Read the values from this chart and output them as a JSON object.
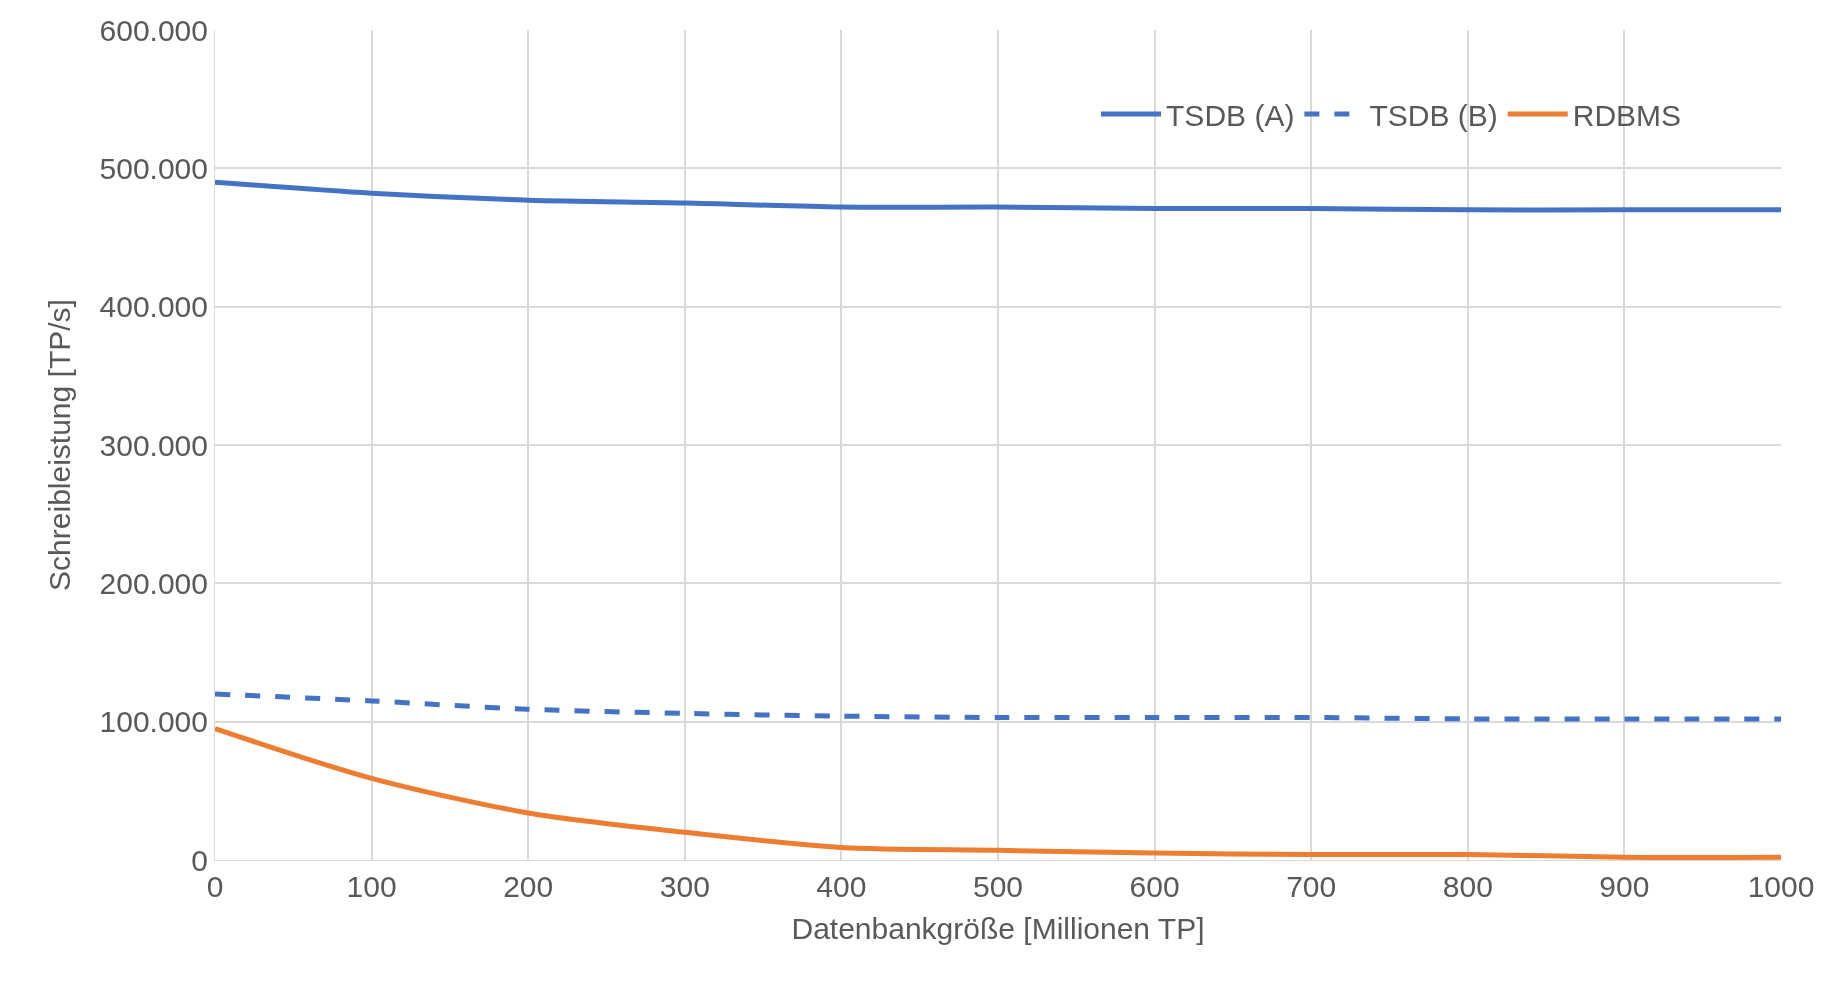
{
  "chart_data": {
    "type": "line",
    "xlabel": "Datenbankgröße [Millionen TP]",
    "ylabel": "Schreibleistung [TP/s]",
    "x": [
      0,
      100,
      200,
      300,
      400,
      500,
      600,
      700,
      800,
      900,
      1000
    ],
    "series": [
      {
        "name": "TSDB (A)",
        "color": "#4472c4",
        "line_style": "solid",
        "values": [
          490000,
          482000,
          477000,
          475000,
          472000,
          472000,
          471000,
          471000,
          470000,
          470000,
          470000
        ]
      },
      {
        "name": "TSDB (B)",
        "color": "#4472c4",
        "line_style": "dashed",
        "values": [
          120000,
          115000,
          109000,
          106000,
          104000,
          103000,
          103000,
          103000,
          102000,
          102000,
          102000
        ]
      },
      {
        "name": "RDBMS",
        "color": "#ed7d31",
        "line_style": "solid",
        "values": [
          95000,
          59000,
          34000,
          20000,
          9000,
          7000,
          5000,
          4000,
          4000,
          2000,
          2000
        ]
      }
    ],
    "xlim": [
      0,
      1000
    ],
    "xticks": [
      0,
      100,
      200,
      300,
      400,
      500,
      600,
      700,
      800,
      900,
      1000
    ],
    "ylim": [
      0,
      600000
    ],
    "yticks": [
      {
        "value": 0,
        "label": "0"
      },
      {
        "value": 100000,
        "label": "100.000"
      },
      {
        "value": 200000,
        "label": "200.000"
      },
      {
        "value": 300000,
        "label": "300.000"
      },
      {
        "value": 400000,
        "label": "400.000"
      },
      {
        "value": 500000,
        "label": "500.000"
      },
      {
        "value": 600000,
        "label": "600.000"
      }
    ],
    "grid": true,
    "legend": "top right",
    "marker": "none"
  }
}
